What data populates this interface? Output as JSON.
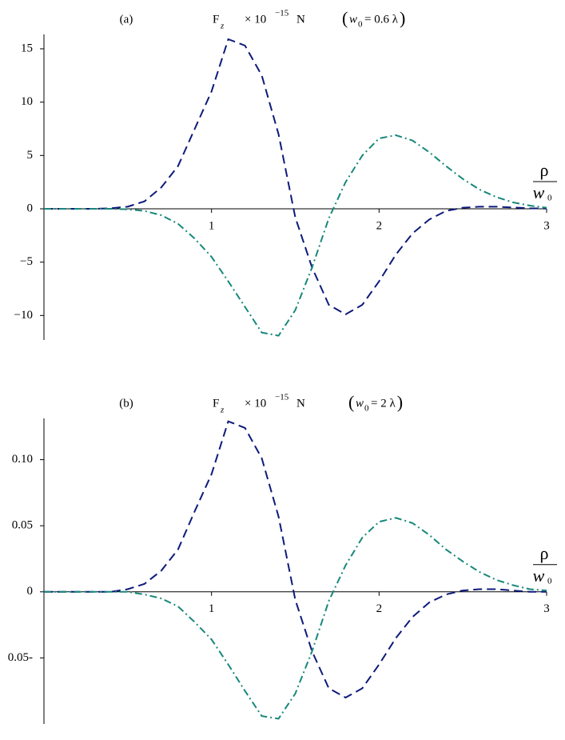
{
  "chart_data": [
    {
      "type": "line",
      "title": {
        "panel": "(a)",
        "symbol": "F",
        "symbol_sub": "z",
        "multiplier": "× 10",
        "exponent": "−15",
        "unit": "N",
        "param_open": "(",
        "param": "w",
        "param_sub": "0",
        "param_value": "= 0.6 λ",
        "param_close": ")"
      },
      "x_label": {
        "numerator": "ρ",
        "denominator": "w",
        "denominator_sub": "0"
      },
      "x": [
        0,
        0.1,
        0.2,
        0.3,
        0.4,
        0.5,
        0.6,
        0.7,
        0.8,
        0.9,
        1,
        1.1,
        1.2,
        1.3,
        1.4,
        1.5,
        1.6,
        1.7,
        1.8,
        1.9,
        2,
        2.1,
        2.2,
        2.3,
        2.4,
        2.5,
        2.6,
        2.7,
        2.8,
        2.9,
        3
      ],
      "series": [
        {
          "color": "#0d1a7a",
          "dash": "dash",
          "values": [
            0,
            0,
            0,
            0,
            0.05,
            0.2,
            0.7,
            2,
            4,
            7.5,
            11,
            15.9,
            15.3,
            12.5,
            7,
            -0.8,
            -5.5,
            -9,
            -9.9,
            -9,
            -6.8,
            -4.3,
            -2.3,
            -1,
            -0.2,
            0.1,
            0.2,
            0.2,
            0.12,
            0.05,
            0.02
          ]
        },
        {
          "color": "#16887a",
          "dash": "dashdot",
          "values": [
            0,
            0,
            0,
            0,
            0,
            -0.05,
            -0.2,
            -0.6,
            -1.4,
            -2.8,
            -4.5,
            -6.8,
            -9.2,
            -11.6,
            -11.9,
            -9.5,
            -5.5,
            -0.9,
            2.5,
            5,
            6.6,
            6.9,
            6.4,
            5.3,
            4,
            2.8,
            1.8,
            1.1,
            0.6,
            0.3,
            0.1
          ]
        }
      ],
      "xlim": [
        0,
        3
      ],
      "ylim": [
        -12.3,
        16.2
      ],
      "xticks": [
        1,
        2,
        3
      ],
      "yticks": [
        15,
        10,
        5,
        0,
        {
          "value": -5,
          "label": "−5"
        },
        {
          "value": -10,
          "label": "−10"
        }
      ]
    },
    {
      "type": "line",
      "title": {
        "panel": "(b)",
        "symbol": "F",
        "symbol_sub": "z",
        "multiplier": "× 10",
        "exponent": "−15",
        "unit": "N",
        "param_open": "(",
        "param": "w",
        "param_sub": "0",
        "param_value": "= 2 λ",
        "param_close": ")"
      },
      "x_label": {
        "numerator": "ρ",
        "denominator": "w",
        "denominator_sub": "0"
      },
      "x": [
        0,
        0.1,
        0.2,
        0.3,
        0.4,
        0.5,
        0.6,
        0.7,
        0.8,
        0.9,
        1,
        1.1,
        1.2,
        1.3,
        1.4,
        1.5,
        1.6,
        1.7,
        1.8,
        1.9,
        2,
        2.1,
        2.2,
        2.3,
        2.4,
        2.5,
        2.6,
        2.7,
        2.8,
        2.9,
        3
      ],
      "series": [
        {
          "color": "#0d1a7a",
          "dash": "dash",
          "values": [
            0,
            0,
            0,
            0,
            0,
            0.002,
            0.006,
            0.016,
            0.032,
            0.061,
            0.089,
            0.129,
            0.124,
            0.101,
            0.057,
            -0.006,
            -0.045,
            -0.073,
            -0.08,
            -0.073,
            -0.055,
            -0.035,
            -0.019,
            -0.008,
            -0.002,
            0.001,
            0.002,
            0.002,
            0.001,
            0,
            0
          ]
        },
        {
          "color": "#16887a",
          "dash": "dashdot",
          "values": [
            0,
            0,
            0,
            0,
            0,
            0,
            -0.002,
            -0.005,
            -0.011,
            -0.023,
            -0.036,
            -0.055,
            -0.075,
            -0.094,
            -0.096,
            -0.077,
            -0.045,
            -0.007,
            0.02,
            0.041,
            0.053,
            0.056,
            0.052,
            0.043,
            0.032,
            0.023,
            0.015,
            0.009,
            0.005,
            0.002,
            0.001
          ]
        }
      ],
      "xlim": [
        0,
        3
      ],
      "ylim": [
        -0.1,
        0.13
      ],
      "xticks": [
        1,
        2,
        3
      ],
      "yticks": [
        {
          "value": 0.1,
          "label": "0.10"
        },
        0.05,
        0,
        {
          "value": -0.05,
          "label": "0.05-"
        }
      ]
    }
  ]
}
